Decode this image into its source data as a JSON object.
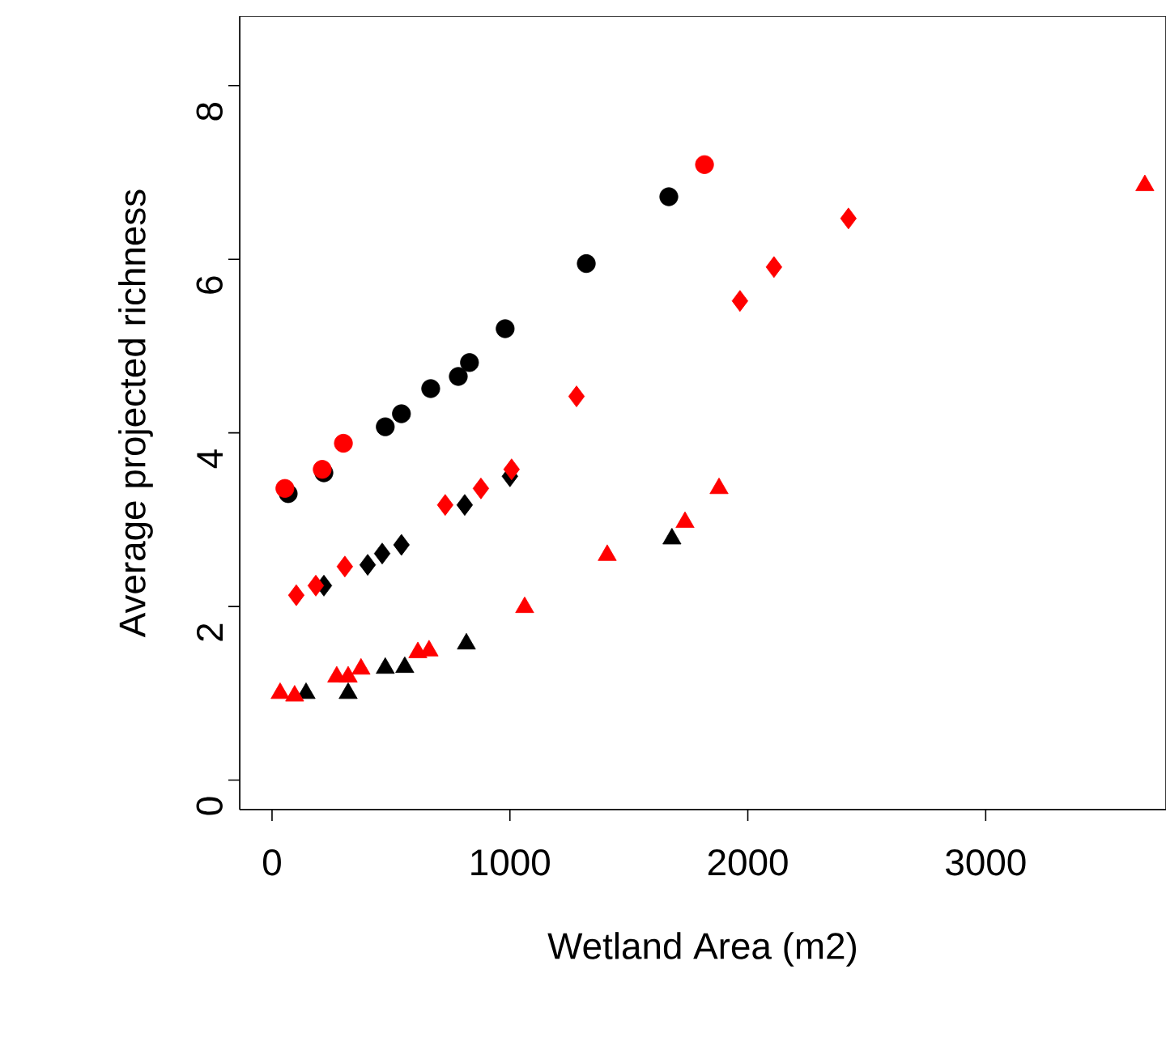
{
  "chart_data": {
    "type": "scatter",
    "xlabel": "Wetland Area (m2)",
    "ylabel": "Average projected richness",
    "xlim": [
      -136,
      3758
    ],
    "ylim": [
      -0.34,
      8.8
    ],
    "xticks": [
      0,
      1000,
      2000,
      3000
    ],
    "yticks": [
      0,
      2,
      4,
      6,
      8
    ],
    "grid": false,
    "series": [
      {
        "color": "#000000",
        "marker": "circle",
        "x": [
          68,
          218,
          476,
          544,
          667,
          783,
          830,
          980,
          1321,
          1668
        ],
        "values": [
          3.3,
          3.54,
          4.07,
          4.22,
          4.51,
          4.65,
          4.81,
          5.2,
          5.95,
          6.72
        ]
      },
      {
        "color": "#000000",
        "marker": "diamond",
        "x": [
          218,
          402,
          463,
          544,
          810,
          1000
        ],
        "values": [
          2.24,
          2.48,
          2.61,
          2.71,
          3.17,
          3.5
        ]
      },
      {
        "color": "#000000",
        "marker": "triangle",
        "x": [
          143,
          320,
          476,
          558,
          817,
          1681
        ],
        "values": [
          1.0,
          1.0,
          1.29,
          1.3,
          1.57,
          2.78
        ]
      },
      {
        "color": "#ff0000",
        "marker": "circle",
        "x": [
          54,
          211,
          300,
          1818
        ],
        "values": [
          3.36,
          3.58,
          3.88,
          7.09
        ]
      },
      {
        "color": "#ff0000",
        "marker": "diamond",
        "x": [
          102,
          184,
          306,
          728,
          878,
          1007,
          1280,
          1967,
          2110,
          2423
        ],
        "values": [
          2.13,
          2.24,
          2.46,
          3.17,
          3.36,
          3.58,
          4.42,
          5.52,
          5.91,
          6.47
        ]
      },
      {
        "color": "#ff0000",
        "marker": "triangle",
        "x": [
          34,
          95,
          272,
          320,
          374,
          613,
          660,
          1062,
          1409,
          1736,
          1879,
          3669
        ],
        "values": [
          1.0,
          0.97,
          1.19,
          1.19,
          1.28,
          1.47,
          1.49,
          1.99,
          2.59,
          2.97,
          3.36,
          6.85
        ]
      }
    ]
  }
}
